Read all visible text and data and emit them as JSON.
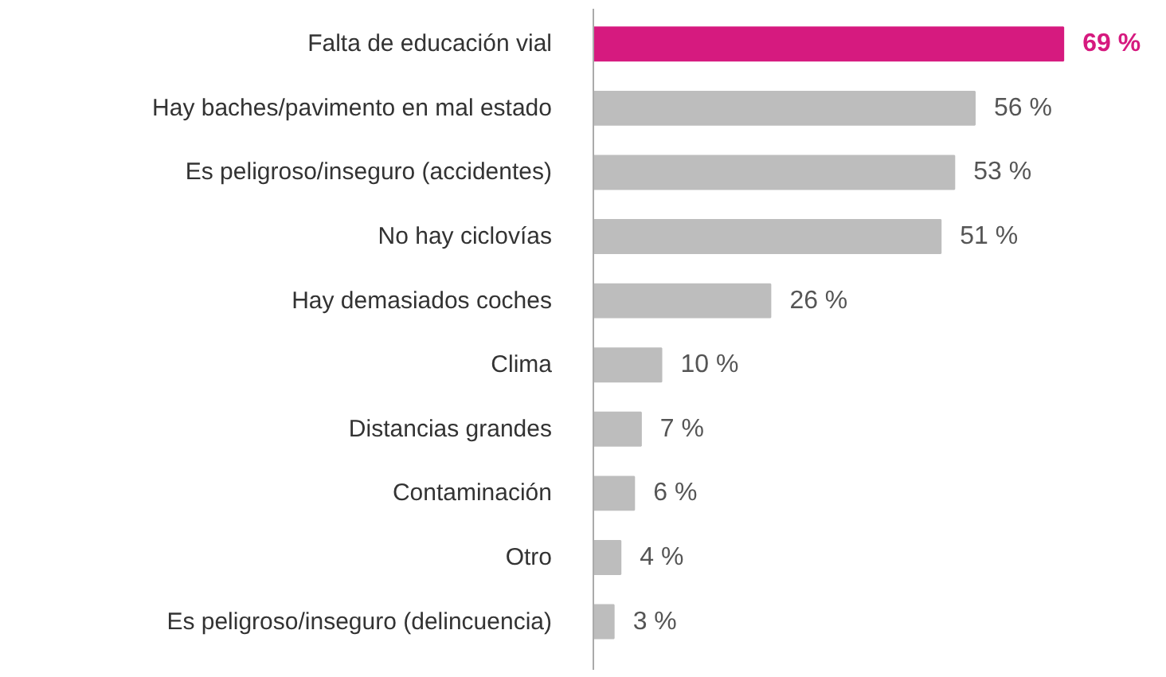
{
  "chart_data": {
    "type": "bar",
    "orientation": "horizontal",
    "categories": [
      "Falta de educación vial",
      "Hay baches/pavimento en mal estado",
      "Es peligroso/inseguro (accidentes)",
      "No hay ciclovías",
      "Hay demasiados coches",
      "Clima",
      "Distancias grandes",
      "Contaminación",
      "Otro",
      "Es peligroso/inseguro (delincuencia)"
    ],
    "values": [
      69,
      56,
      53,
      51,
      26,
      10,
      7,
      6,
      4,
      3
    ],
    "colors": [
      "#d61a7f",
      "#bdbdbd",
      "#bdbdbd",
      "#bdbdbd",
      "#bdbdbd",
      "#bdbdbd",
      "#bdbdbd",
      "#bdbdbd",
      "#bdbdbd",
      "#bdbdbd"
    ],
    "value_labels": [
      "69 %",
      "56 %",
      "53 %",
      "51 %",
      "26 %",
      "10 %",
      "7 %",
      "6 %",
      "4 %",
      "3 %"
    ],
    "grid": false,
    "tick_labels": "y"
  }
}
